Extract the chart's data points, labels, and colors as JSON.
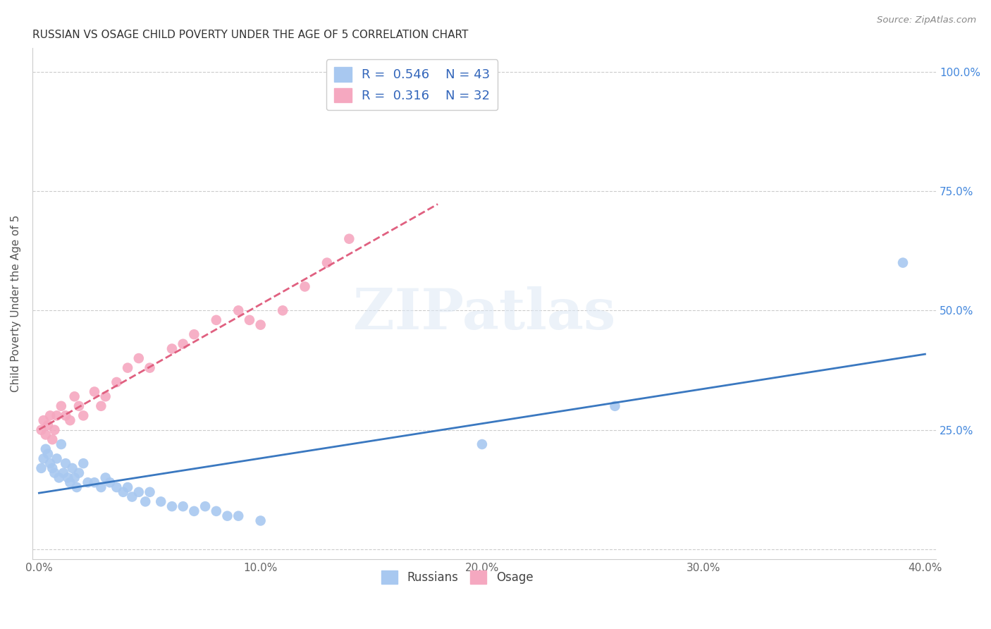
{
  "title": "RUSSIAN VS OSAGE CHILD POVERTY UNDER THE AGE OF 5 CORRELATION CHART",
  "source": "Source: ZipAtlas.com",
  "xlabel_ticks": [
    "0.0%",
    "",
    "",
    "",
    "",
    "10.0%",
    "",
    "",
    "",
    "",
    "20.0%",
    "",
    "",
    "",
    "",
    "30.0%",
    "",
    "",
    "",
    "",
    "40.0%"
  ],
  "xlabel_tick_vals": [
    0.0,
    0.02,
    0.04,
    0.06,
    0.08,
    0.1,
    0.12,
    0.14,
    0.16,
    0.18,
    0.2,
    0.22,
    0.24,
    0.26,
    0.28,
    0.3,
    0.32,
    0.34,
    0.36,
    0.38,
    0.4
  ],
  "ylabel": "Child Poverty Under the Age of 5",
  "ylabel_ticks": [
    "",
    "25.0%",
    "50.0%",
    "75.0%",
    "100.0%"
  ],
  "ylabel_tick_vals": [
    0.0,
    0.25,
    0.5,
    0.75,
    1.0
  ],
  "xlim": [
    -0.003,
    0.405
  ],
  "ylim": [
    -0.02,
    1.05
  ],
  "legend_russian_r": "0.546",
  "legend_russian_n": "43",
  "legend_osage_r": "0.316",
  "legend_osage_n": "32",
  "color_russian": "#a8c8f0",
  "color_osage": "#f5a8c0",
  "color_russian_line": "#3a78c0",
  "color_osage_line": "#e06080",
  "russians_x": [
    0.001,
    0.002,
    0.003,
    0.004,
    0.005,
    0.006,
    0.007,
    0.008,
    0.009,
    0.01,
    0.011,
    0.012,
    0.013,
    0.014,
    0.015,
    0.016,
    0.017,
    0.018,
    0.02,
    0.022,
    0.025,
    0.028,
    0.03,
    0.032,
    0.035,
    0.038,
    0.04,
    0.042,
    0.045,
    0.048,
    0.05,
    0.055,
    0.06,
    0.065,
    0.07,
    0.075,
    0.08,
    0.085,
    0.09,
    0.1,
    0.2,
    0.26,
    0.39
  ],
  "russians_y": [
    0.17,
    0.19,
    0.21,
    0.2,
    0.18,
    0.17,
    0.16,
    0.19,
    0.15,
    0.22,
    0.16,
    0.18,
    0.15,
    0.14,
    0.17,
    0.15,
    0.13,
    0.16,
    0.18,
    0.14,
    0.14,
    0.13,
    0.15,
    0.14,
    0.13,
    0.12,
    0.13,
    0.11,
    0.12,
    0.1,
    0.12,
    0.1,
    0.09,
    0.09,
    0.08,
    0.09,
    0.08,
    0.07,
    0.07,
    0.06,
    0.22,
    0.3,
    0.6
  ],
  "osage_x": [
    0.001,
    0.002,
    0.003,
    0.004,
    0.005,
    0.006,
    0.007,
    0.008,
    0.01,
    0.012,
    0.014,
    0.016,
    0.018,
    0.02,
    0.025,
    0.028,
    0.03,
    0.035,
    0.04,
    0.045,
    0.05,
    0.06,
    0.065,
    0.07,
    0.08,
    0.09,
    0.095,
    0.1,
    0.11,
    0.12,
    0.13,
    0.14
  ],
  "osage_y": [
    0.25,
    0.27,
    0.24,
    0.26,
    0.28,
    0.23,
    0.25,
    0.28,
    0.3,
    0.28,
    0.27,
    0.32,
    0.3,
    0.28,
    0.33,
    0.3,
    0.32,
    0.35,
    0.38,
    0.4,
    0.38,
    0.42,
    0.43,
    0.45,
    0.48,
    0.5,
    0.48,
    0.47,
    0.5,
    0.55,
    0.6,
    0.65
  ]
}
